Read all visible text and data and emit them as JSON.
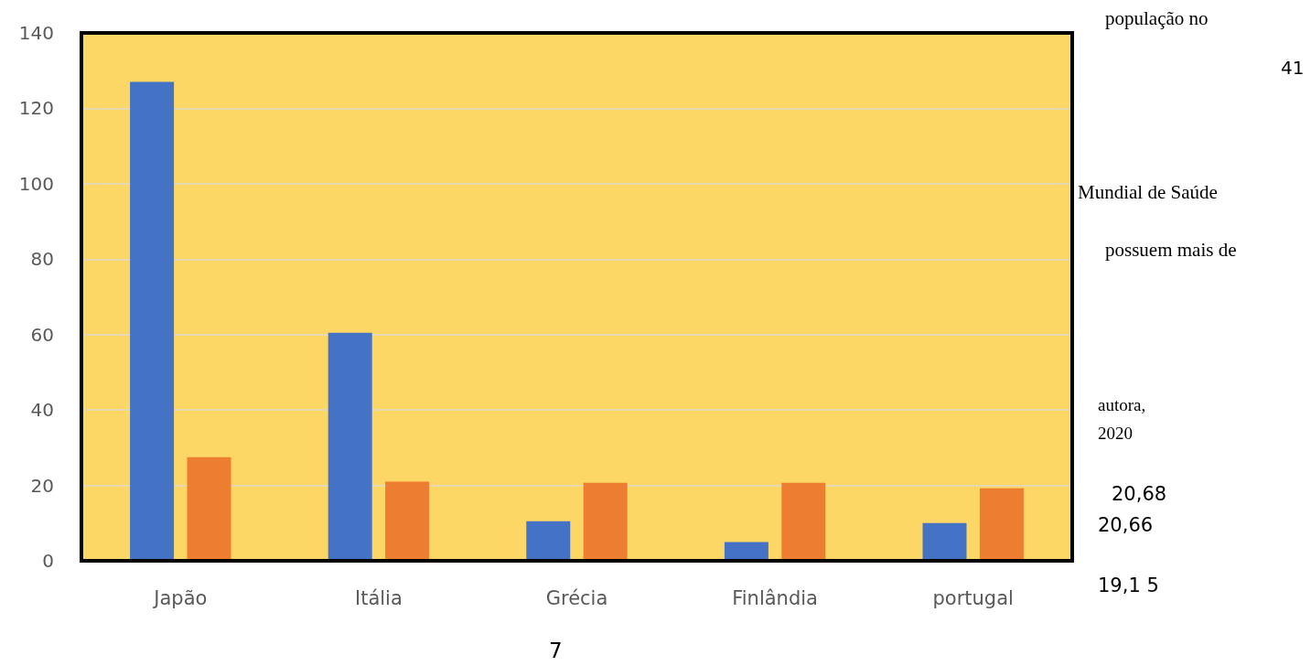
{
  "chart_data": {
    "type": "bar",
    "categories": [
      "Japão",
      "Itália",
      "Grécia",
      "Finlândia",
      "portugal"
    ],
    "series": [
      {
        "color": "#4472c4",
        "values": [
          127,
          60.5,
          10.5,
          5,
          10
        ]
      },
      {
        "color": "#ed7d31",
        "values": [
          27.5,
          21,
          20.7,
          20.7,
          19.2
        ]
      }
    ],
    "ylim": [
      0,
      140
    ],
    "yticks": [
      0,
      20,
      40,
      60,
      80,
      100,
      120,
      140
    ],
    "grid": "y",
    "annotations": [
      "população no",
      "41",
      "Mundial de Saúde",
      "possuem mais de",
      "autora,",
      "2020",
      "20,68",
      "20,66",
      "19,1 5",
      "7"
    ]
  }
}
